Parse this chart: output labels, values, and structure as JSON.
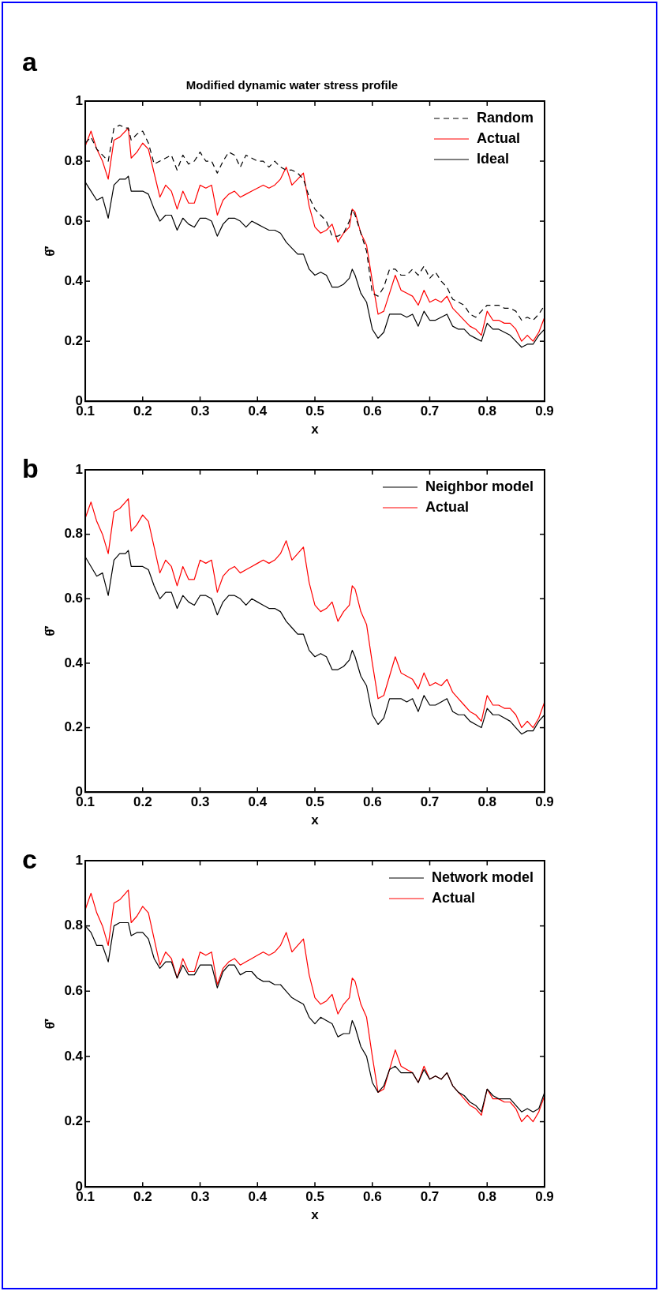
{
  "chart_data": [
    {
      "type": "line",
      "title": "Modified dynamic water stress profile",
      "xlabel": "x",
      "ylabel": "θ̄′",
      "annotations": [
        "a"
      ],
      "legend": "top right",
      "grid": false,
      "marker": "none",
      "x": [
        0.1,
        0.11,
        0.12,
        0.13,
        0.14,
        0.15,
        0.16,
        0.17,
        0.175,
        0.18,
        0.19,
        0.2,
        0.21,
        0.22,
        0.23,
        0.24,
        0.25,
        0.26,
        0.27,
        0.28,
        0.29,
        0.3,
        0.31,
        0.32,
        0.33,
        0.34,
        0.35,
        0.36,
        0.37,
        0.38,
        0.39,
        0.4,
        0.41,
        0.42,
        0.43,
        0.44,
        0.45,
        0.46,
        0.47,
        0.48,
        0.49,
        0.5,
        0.51,
        0.52,
        0.53,
        0.54,
        0.55,
        0.56,
        0.565,
        0.57,
        0.58,
        0.59,
        0.6,
        0.61,
        0.62,
        0.63,
        0.64,
        0.65,
        0.66,
        0.67,
        0.68,
        0.69,
        0.7,
        0.71,
        0.72,
        0.73,
        0.74,
        0.75,
        0.76,
        0.77,
        0.78,
        0.79,
        0.8,
        0.81,
        0.82,
        0.83,
        0.84,
        0.85,
        0.86,
        0.87,
        0.88,
        0.89,
        0.9
      ],
      "xlim": [
        0.1,
        0.9
      ],
      "xticks": [
        0.1,
        0.2,
        0.3,
        0.4,
        0.5,
        0.6,
        0.7,
        0.8,
        0.9
      ],
      "ylim": [
        0,
        1
      ],
      "yticks": [
        0,
        0.2,
        0.4,
        0.6,
        0.8,
        1
      ],
      "series": [
        {
          "name": "Random",
          "color": "#000000",
          "line_style": "dashed",
          "values": [
            0.86,
            0.88,
            0.84,
            0.82,
            0.8,
            0.91,
            0.92,
            0.91,
            0.91,
            0.87,
            0.89,
            0.9,
            0.86,
            0.79,
            0.8,
            0.81,
            0.82,
            0.77,
            0.82,
            0.79,
            0.8,
            0.83,
            0.8,
            0.8,
            0.76,
            0.8,
            0.83,
            0.82,
            0.78,
            0.82,
            0.81,
            0.8,
            0.8,
            0.78,
            0.8,
            0.78,
            0.77,
            0.77,
            0.76,
            0.74,
            0.68,
            0.64,
            0.62,
            0.6,
            0.55,
            0.55,
            0.56,
            0.6,
            0.64,
            0.62,
            0.56,
            0.5,
            0.36,
            0.35,
            0.38,
            0.44,
            0.44,
            0.42,
            0.42,
            0.44,
            0.42,
            0.45,
            0.41,
            0.43,
            0.4,
            0.38,
            0.34,
            0.33,
            0.32,
            0.29,
            0.28,
            0.3,
            0.32,
            0.32,
            0.32,
            0.31,
            0.31,
            0.3,
            0.27,
            0.28,
            0.27,
            0.29,
            0.32
          ]
        },
        {
          "name": "Actual",
          "color": "#ff0000",
          "line_style": "solid",
          "values": [
            0.85,
            0.9,
            0.84,
            0.8,
            0.74,
            0.87,
            0.88,
            0.9,
            0.91,
            0.81,
            0.83,
            0.86,
            0.84,
            0.76,
            0.68,
            0.72,
            0.7,
            0.64,
            0.7,
            0.66,
            0.66,
            0.72,
            0.71,
            0.72,
            0.62,
            0.67,
            0.69,
            0.7,
            0.68,
            0.69,
            0.7,
            0.71,
            0.72,
            0.71,
            0.72,
            0.74,
            0.78,
            0.72,
            0.74,
            0.76,
            0.65,
            0.58,
            0.56,
            0.57,
            0.59,
            0.53,
            0.56,
            0.58,
            0.64,
            0.63,
            0.56,
            0.52,
            0.4,
            0.29,
            0.3,
            0.36,
            0.42,
            0.37,
            0.36,
            0.35,
            0.32,
            0.37,
            0.33,
            0.34,
            0.33,
            0.35,
            0.31,
            0.29,
            0.27,
            0.25,
            0.24,
            0.22,
            0.3,
            0.27,
            0.27,
            0.26,
            0.26,
            0.24,
            0.2,
            0.22,
            0.2,
            0.23,
            0.28
          ]
        },
        {
          "name": "Ideal",
          "color": "#000000",
          "line_style": "solid",
          "values": [
            0.73,
            0.7,
            0.67,
            0.68,
            0.61,
            0.72,
            0.74,
            0.74,
            0.75,
            0.7,
            0.7,
            0.7,
            0.69,
            0.64,
            0.6,
            0.62,
            0.62,
            0.57,
            0.61,
            0.59,
            0.58,
            0.61,
            0.61,
            0.6,
            0.55,
            0.59,
            0.61,
            0.61,
            0.6,
            0.58,
            0.6,
            0.59,
            0.58,
            0.57,
            0.57,
            0.56,
            0.53,
            0.51,
            0.49,
            0.49,
            0.44,
            0.42,
            0.43,
            0.42,
            0.38,
            0.38,
            0.39,
            0.41,
            0.44,
            0.42,
            0.36,
            0.33,
            0.24,
            0.21,
            0.23,
            0.29,
            0.29,
            0.29,
            0.28,
            0.29,
            0.25,
            0.3,
            0.27,
            0.27,
            0.28,
            0.29,
            0.25,
            0.24,
            0.24,
            0.22,
            0.21,
            0.2,
            0.26,
            0.24,
            0.24,
            0.23,
            0.22,
            0.2,
            0.18,
            0.19,
            0.19,
            0.22,
            0.24
          ]
        }
      ]
    },
    {
      "type": "line",
      "xlabel": "x",
      "ylabel": "θ̄′",
      "annotations": [
        "b"
      ],
      "legend": "top right",
      "grid": false,
      "marker": "none",
      "x": [
        0.1,
        0.11,
        0.12,
        0.13,
        0.14,
        0.15,
        0.16,
        0.17,
        0.175,
        0.18,
        0.19,
        0.2,
        0.21,
        0.22,
        0.23,
        0.24,
        0.25,
        0.26,
        0.27,
        0.28,
        0.29,
        0.3,
        0.31,
        0.32,
        0.33,
        0.34,
        0.35,
        0.36,
        0.37,
        0.38,
        0.39,
        0.4,
        0.41,
        0.42,
        0.43,
        0.44,
        0.45,
        0.46,
        0.47,
        0.48,
        0.49,
        0.5,
        0.51,
        0.52,
        0.53,
        0.54,
        0.55,
        0.56,
        0.565,
        0.57,
        0.58,
        0.59,
        0.6,
        0.61,
        0.62,
        0.63,
        0.64,
        0.65,
        0.66,
        0.67,
        0.68,
        0.69,
        0.7,
        0.71,
        0.72,
        0.73,
        0.74,
        0.75,
        0.76,
        0.77,
        0.78,
        0.79,
        0.8,
        0.81,
        0.82,
        0.83,
        0.84,
        0.85,
        0.86,
        0.87,
        0.88,
        0.89,
        0.9
      ],
      "xlim": [
        0.1,
        0.9
      ],
      "xticks": [
        0.1,
        0.2,
        0.3,
        0.4,
        0.5,
        0.6,
        0.7,
        0.8,
        0.9
      ],
      "ylim": [
        0,
        1
      ],
      "yticks": [
        0,
        0.2,
        0.4,
        0.6,
        0.8,
        1
      ],
      "series": [
        {
          "name": "Neighbor model",
          "color": "#000000",
          "line_style": "solid",
          "values": [
            0.73,
            0.7,
            0.67,
            0.68,
            0.61,
            0.72,
            0.74,
            0.74,
            0.75,
            0.7,
            0.7,
            0.7,
            0.69,
            0.64,
            0.6,
            0.62,
            0.62,
            0.57,
            0.61,
            0.59,
            0.58,
            0.61,
            0.61,
            0.6,
            0.55,
            0.59,
            0.61,
            0.61,
            0.6,
            0.58,
            0.6,
            0.59,
            0.58,
            0.57,
            0.57,
            0.56,
            0.53,
            0.51,
            0.49,
            0.49,
            0.44,
            0.42,
            0.43,
            0.42,
            0.38,
            0.38,
            0.39,
            0.41,
            0.44,
            0.42,
            0.36,
            0.33,
            0.24,
            0.21,
            0.23,
            0.29,
            0.29,
            0.29,
            0.28,
            0.29,
            0.25,
            0.3,
            0.27,
            0.27,
            0.28,
            0.29,
            0.25,
            0.24,
            0.24,
            0.22,
            0.21,
            0.2,
            0.26,
            0.24,
            0.24,
            0.23,
            0.22,
            0.2,
            0.18,
            0.19,
            0.19,
            0.22,
            0.24
          ]
        },
        {
          "name": "Actual",
          "color": "#ff0000",
          "line_style": "solid",
          "values": [
            0.85,
            0.9,
            0.84,
            0.8,
            0.74,
            0.87,
            0.88,
            0.9,
            0.91,
            0.81,
            0.83,
            0.86,
            0.84,
            0.76,
            0.68,
            0.72,
            0.7,
            0.64,
            0.7,
            0.66,
            0.66,
            0.72,
            0.71,
            0.72,
            0.62,
            0.67,
            0.69,
            0.7,
            0.68,
            0.69,
            0.7,
            0.71,
            0.72,
            0.71,
            0.72,
            0.74,
            0.78,
            0.72,
            0.74,
            0.76,
            0.65,
            0.58,
            0.56,
            0.57,
            0.59,
            0.53,
            0.56,
            0.58,
            0.64,
            0.63,
            0.56,
            0.52,
            0.4,
            0.29,
            0.3,
            0.36,
            0.42,
            0.37,
            0.36,
            0.35,
            0.32,
            0.37,
            0.33,
            0.34,
            0.33,
            0.35,
            0.31,
            0.29,
            0.27,
            0.25,
            0.24,
            0.22,
            0.3,
            0.27,
            0.27,
            0.26,
            0.26,
            0.24,
            0.2,
            0.22,
            0.2,
            0.23,
            0.28
          ]
        }
      ]
    },
    {
      "type": "line",
      "xlabel": "x",
      "ylabel": "θ̄′",
      "annotations": [
        "c"
      ],
      "legend": "top right",
      "grid": false,
      "marker": "none",
      "x": [
        0.1,
        0.11,
        0.12,
        0.13,
        0.14,
        0.15,
        0.16,
        0.17,
        0.175,
        0.18,
        0.19,
        0.2,
        0.21,
        0.22,
        0.23,
        0.24,
        0.25,
        0.26,
        0.27,
        0.28,
        0.29,
        0.3,
        0.31,
        0.32,
        0.33,
        0.34,
        0.35,
        0.36,
        0.37,
        0.38,
        0.39,
        0.4,
        0.41,
        0.42,
        0.43,
        0.44,
        0.45,
        0.46,
        0.47,
        0.48,
        0.49,
        0.5,
        0.51,
        0.52,
        0.53,
        0.54,
        0.55,
        0.56,
        0.565,
        0.57,
        0.58,
        0.59,
        0.6,
        0.61,
        0.62,
        0.63,
        0.64,
        0.65,
        0.66,
        0.67,
        0.68,
        0.69,
        0.7,
        0.71,
        0.72,
        0.73,
        0.74,
        0.75,
        0.76,
        0.77,
        0.78,
        0.79,
        0.8,
        0.81,
        0.82,
        0.83,
        0.84,
        0.85,
        0.86,
        0.87,
        0.88,
        0.89,
        0.9
      ],
      "xlim": [
        0.1,
        0.9
      ],
      "xticks": [
        0.1,
        0.2,
        0.3,
        0.4,
        0.5,
        0.6,
        0.7,
        0.8,
        0.9
      ],
      "ylim": [
        0,
        1
      ],
      "yticks": [
        0,
        0.2,
        0.4,
        0.6,
        0.8,
        1
      ],
      "series": [
        {
          "name": "Network model",
          "color": "#000000",
          "line_style": "solid",
          "values": [
            0.8,
            0.78,
            0.74,
            0.74,
            0.69,
            0.8,
            0.81,
            0.81,
            0.81,
            0.77,
            0.78,
            0.78,
            0.76,
            0.7,
            0.67,
            0.69,
            0.69,
            0.64,
            0.68,
            0.65,
            0.65,
            0.68,
            0.68,
            0.68,
            0.61,
            0.66,
            0.68,
            0.68,
            0.65,
            0.66,
            0.66,
            0.64,
            0.63,
            0.63,
            0.62,
            0.62,
            0.6,
            0.58,
            0.57,
            0.56,
            0.52,
            0.5,
            0.52,
            0.51,
            0.5,
            0.46,
            0.47,
            0.47,
            0.51,
            0.49,
            0.43,
            0.4,
            0.32,
            0.29,
            0.31,
            0.36,
            0.37,
            0.35,
            0.35,
            0.35,
            0.32,
            0.36,
            0.33,
            0.34,
            0.33,
            0.35,
            0.31,
            0.29,
            0.28,
            0.26,
            0.25,
            0.23,
            0.3,
            0.28,
            0.27,
            0.27,
            0.27,
            0.25,
            0.23,
            0.24,
            0.23,
            0.24,
            0.29
          ]
        },
        {
          "name": "Actual",
          "color": "#ff0000",
          "line_style": "solid",
          "values": [
            0.85,
            0.9,
            0.84,
            0.8,
            0.74,
            0.87,
            0.88,
            0.9,
            0.91,
            0.81,
            0.83,
            0.86,
            0.84,
            0.76,
            0.68,
            0.72,
            0.7,
            0.64,
            0.7,
            0.66,
            0.66,
            0.72,
            0.71,
            0.72,
            0.62,
            0.67,
            0.69,
            0.7,
            0.68,
            0.69,
            0.7,
            0.71,
            0.72,
            0.71,
            0.72,
            0.74,
            0.78,
            0.72,
            0.74,
            0.76,
            0.65,
            0.58,
            0.56,
            0.57,
            0.59,
            0.53,
            0.56,
            0.58,
            0.64,
            0.63,
            0.56,
            0.52,
            0.4,
            0.29,
            0.3,
            0.36,
            0.42,
            0.37,
            0.36,
            0.35,
            0.32,
            0.37,
            0.33,
            0.34,
            0.33,
            0.35,
            0.31,
            0.29,
            0.27,
            0.25,
            0.24,
            0.22,
            0.3,
            0.27,
            0.27,
            0.26,
            0.26,
            0.24,
            0.2,
            0.22,
            0.2,
            0.23,
            0.28
          ]
        }
      ]
    }
  ]
}
